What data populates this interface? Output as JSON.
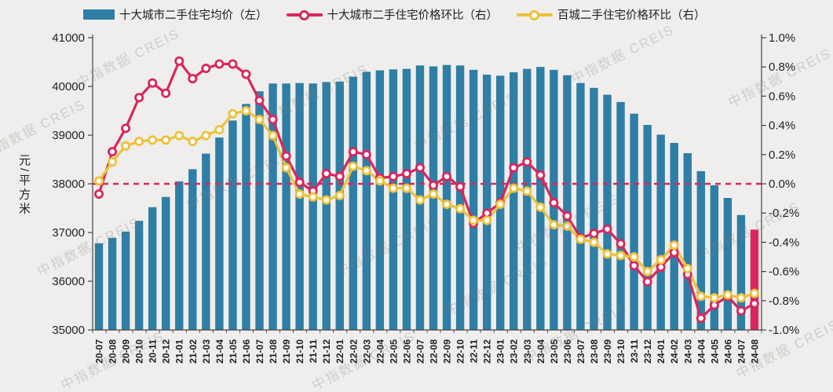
{
  "page": {
    "background": "#efeeec",
    "watermark_text": "中指数据 CREIS"
  },
  "legend": [
    {
      "label": "十大城市二手住宅均价（左）",
      "type": "bar",
      "color": "#2f7ea6"
    },
    {
      "label": "十大城市二手住宅价格环比（右）",
      "type": "line",
      "color": "#d9265e"
    },
    {
      "label": "百城二手住宅价格环比（右）",
      "type": "line",
      "color": "#ecc23c"
    }
  ],
  "chart_data": {
    "type": "bar",
    "categories": [
      "20-07",
      "20-08",
      "20-09",
      "20-10",
      "20-11",
      "20-12",
      "21-01",
      "21-02",
      "21-03",
      "21-04",
      "21-05",
      "21-06",
      "21-07",
      "21-08",
      "21-09",
      "21-10",
      "21-11",
      "21-12",
      "22-01",
      "22-02",
      "22-03",
      "22-04",
      "22-05",
      "22-06",
      "22-07",
      "22-08",
      "22-09",
      "22-10",
      "22-11",
      "22-12",
      "23-01",
      "23-02",
      "23-03",
      "23-04",
      "23-05",
      "23-06",
      "23-07",
      "23-08",
      "23-09",
      "23-10",
      "23-11",
      "23-12",
      "24-01",
      "24-02",
      "24-03",
      "24-04",
      "24-05",
      "24-06",
      "24-07",
      "24-08"
    ],
    "series": [
      {
        "name": "十大城市二手住宅均价（左）",
        "type": "bar",
        "axis": "left",
        "color": "#2f7ea6",
        "last_bar_color": "#d9265e",
        "values": [
          36780,
          36890,
          37020,
          37240,
          37520,
          37730,
          38050,
          38300,
          38620,
          38950,
          39300,
          39640,
          39900,
          40060,
          40060,
          40070,
          40060,
          40090,
          40100,
          40200,
          40300,
          40330,
          40350,
          40360,
          40430,
          40410,
          40440,
          40430,
          40340,
          40240,
          40220,
          40290,
          40360,
          40400,
          40340,
          40230,
          40070,
          39970,
          39830,
          39680,
          39440,
          39210,
          39010,
          38840,
          38630,
          38260,
          37970,
          37710,
          37360,
          37060
        ]
      },
      {
        "name": "十大城市二手住宅价格环比（右）",
        "type": "line",
        "axis": "right",
        "color": "#d9265e",
        "values": [
          -0.07,
          0.22,
          0.38,
          0.59,
          0.69,
          0.62,
          0.84,
          0.72,
          0.79,
          0.82,
          0.82,
          0.75,
          0.57,
          0.44,
          0.19,
          0.01,
          -0.05,
          0.07,
          0.05,
          0.22,
          0.2,
          0.04,
          0.05,
          0.07,
          0.11,
          -0.01,
          0.05,
          -0.02,
          -0.27,
          -0.2,
          -0.13,
          0.11,
          0.15,
          0.06,
          -0.13,
          -0.22,
          -0.37,
          -0.34,
          -0.31,
          -0.41,
          -0.56,
          -0.67,
          -0.57,
          -0.47,
          -0.62,
          -0.92,
          -0.83,
          -0.77,
          -0.87,
          -0.82
        ]
      },
      {
        "name": "百城二手住宅价格环比（右）",
        "type": "line",
        "axis": "right",
        "color": "#ecc23c",
        "values": [
          0.02,
          0.15,
          0.26,
          0.29,
          0.3,
          0.3,
          0.33,
          0.29,
          0.33,
          0.37,
          0.48,
          0.5,
          0.44,
          0.33,
          0.11,
          -0.07,
          -0.09,
          -0.11,
          -0.08,
          0.12,
          0.09,
          0.02,
          -0.03,
          -0.03,
          -0.11,
          -0.07,
          -0.14,
          -0.17,
          -0.25,
          -0.25,
          -0.14,
          -0.03,
          -0.05,
          -0.16,
          -0.28,
          -0.29,
          -0.38,
          -0.4,
          -0.48,
          -0.49,
          -0.5,
          -0.6,
          -0.52,
          -0.42,
          -0.58,
          -0.77,
          -0.78,
          -0.76,
          -0.78,
          -0.75
        ]
      }
    ],
    "left_axis": {
      "label": "元/平方米",
      "min": 35000,
      "max": 41000,
      "step": 1000,
      "ticks": [
        "41000",
        "40000",
        "39000",
        "38000",
        "37000",
        "36000",
        "35000"
      ]
    },
    "right_axis": {
      "min": -1.0,
      "max": 1.0,
      "step": 0.2,
      "ticks": [
        "1.0%",
        "0.8%",
        "0.6%",
        "0.4%",
        "0.2%",
        "0.0%",
        "-0.2%",
        "-0.4%",
        "-0.6%",
        "-0.8%",
        "-1.0%"
      ]
    },
    "zero_line": {
      "value": 0.0,
      "style": "dashed",
      "color": "#d9265e"
    },
    "grid": false,
    "legend_position": "top"
  }
}
